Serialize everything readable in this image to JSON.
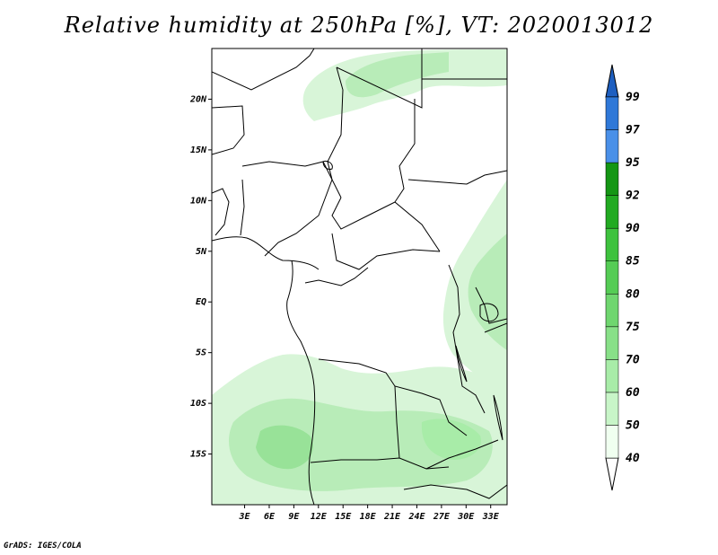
{
  "title": "Relative humidity at 250hPa [%], VT: 2020013012",
  "credit": "GrADS: IGES/COLA",
  "map": {
    "lon_range": [
      -1,
      35
    ],
    "lat_range": [
      -20,
      25
    ],
    "lon_ticks": [
      {
        "value": 3,
        "label": "3E"
      },
      {
        "value": 6,
        "label": "6E"
      },
      {
        "value": 9,
        "label": "9E"
      },
      {
        "value": 12,
        "label": "12E"
      },
      {
        "value": 15,
        "label": "15E"
      },
      {
        "value": 18,
        "label": "18E"
      },
      {
        "value": 21,
        "label": "21E"
      },
      {
        "value": 24,
        "label": "24E"
      },
      {
        "value": 27,
        "label": "27E"
      },
      {
        "value": 30,
        "label": "30E"
      },
      {
        "value": 33,
        "label": "33E"
      }
    ],
    "lat_ticks": [
      {
        "value": 20,
        "label": "20N"
      },
      {
        "value": 15,
        "label": "15N"
      },
      {
        "value": 10,
        "label": "10N"
      },
      {
        "value": 5,
        "label": "5N"
      },
      {
        "value": 0,
        "label": "EQ"
      },
      {
        "value": -5,
        "label": "5S"
      },
      {
        "value": -10,
        "label": "10S"
      },
      {
        "value": -15,
        "label": "15S"
      }
    ]
  },
  "colorbar": {
    "levels": [
      "40",
      "50",
      "60",
      "70",
      "75",
      "80",
      "85",
      "90",
      "92",
      "95",
      "97",
      "99"
    ],
    "colors": [
      "#f0fff0",
      "#c8f5c8",
      "#a8eca8",
      "#88e088",
      "#6fd66f",
      "#55cc55",
      "#3ec23e",
      "#22aa22",
      "#149614",
      "#4a90e8",
      "#2f78d8",
      "#1e5fc0"
    ],
    "low_extend_color": "#ffffff",
    "high_extend_color": "#1e5fc0"
  },
  "colors": {
    "rh_light": "#d8f5d8",
    "rh_mid": "#b8ecb8",
    "rh_dark": "#98e298",
    "border": "#000000"
  }
}
